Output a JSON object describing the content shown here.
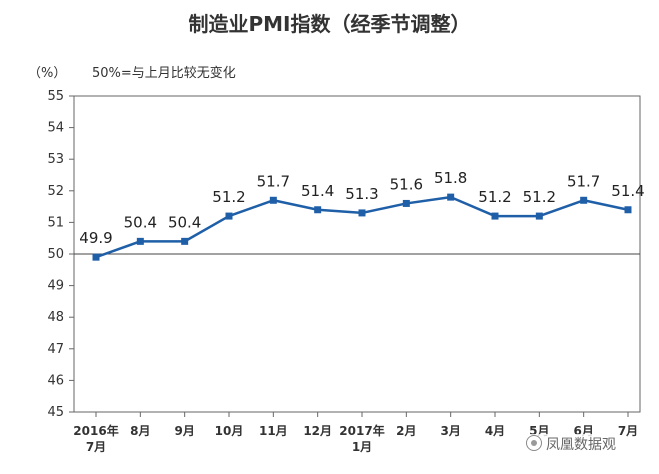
{
  "watermark": {
    "text": "凤凰数据观",
    "icon": "wechat-logo-icon"
  },
  "chart_data": {
    "type": "line",
    "title": "制造业PMI指数（经季节调整）",
    "unit_label": "（%）",
    "annotation": "50%=与上月比较无变化",
    "ylim": [
      45,
      55
    ],
    "y_ticks": [
      45,
      46,
      47,
      48,
      49,
      50,
      51,
      52,
      53,
      54,
      55
    ],
    "reference_line": 50,
    "categories": [
      [
        "2016年",
        "7月"
      ],
      [
        "8月"
      ],
      [
        "9月"
      ],
      [
        "10月"
      ],
      [
        "11月"
      ],
      [
        "12月"
      ],
      [
        "2017年",
        "1月"
      ],
      [
        "2月"
      ],
      [
        "3月"
      ],
      [
        "4月"
      ],
      [
        "5月"
      ],
      [
        "6月"
      ],
      [
        "7月"
      ]
    ],
    "values": [
      49.9,
      50.4,
      50.4,
      51.2,
      51.7,
      51.4,
      51.3,
      51.6,
      51.8,
      51.2,
      51.2,
      51.7,
      51.4
    ],
    "value_labels": [
      "49.9",
      "50.4",
      "50.4",
      "51.2",
      "51.7",
      "51.4",
      "51.3",
      "51.6",
      "51.8",
      "51.2",
      "51.2",
      "51.7",
      "51.4"
    ],
    "line_color": "#1f5fa8",
    "grid_color": "#d0d0d0",
    "axis_color": "#666666"
  }
}
